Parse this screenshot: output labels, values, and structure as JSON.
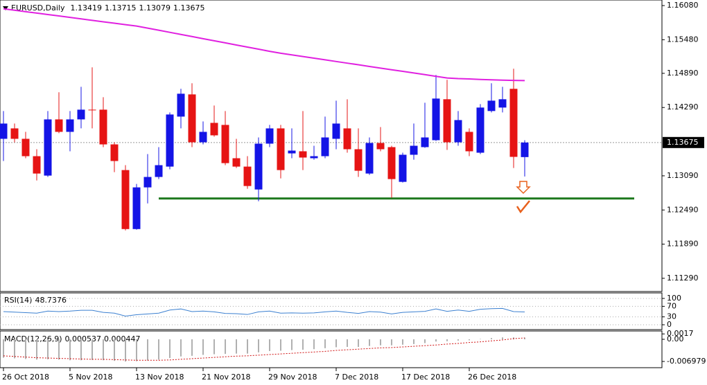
{
  "chart_data": [
    {
      "type": "candlestick",
      "title": "EURUSD,Daily",
      "categories": [
        "26 Oct 2018",
        null,
        null,
        null,
        null,
        null,
        "5 Nov 2018",
        null,
        null,
        null,
        null,
        null,
        "13 Nov 2018",
        null,
        null,
        null,
        null,
        null,
        "21 Nov 2018",
        null,
        null,
        null,
        null,
        null,
        "29 Nov 2018",
        null,
        null,
        null,
        null,
        null,
        "7 Dec 2018",
        null,
        null,
        null,
        null,
        null,
        "17 Dec 2018",
        null,
        null,
        null,
        null,
        null,
        "26 Dec 2018",
        null,
        null,
        null,
        null,
        null
      ],
      "open": [
        1.1374,
        1.13923,
        1.1374,
        1.13435,
        1.13094,
        1.14081,
        1.13862,
        1.14081,
        1.14252,
        1.14252,
        1.13642,
        1.13191,
        1.12155,
        1.12887,
        1.1307,
        1.13252,
        1.1413,
        1.1452,
        1.13679,
        1.1402,
        1.13984,
        1.13399,
        1.13252,
        1.1285,
        1.13655,
        1.13923,
        1.13484,
        1.13521,
        1.13399,
        1.13435,
        1.1374,
        1.13923,
        1.13557,
        1.1313,
        1.13667,
        1.13594,
        1.12984,
        1.1346,
        1.13594,
        1.13716,
        1.14435,
        1.13679,
        1.13862,
        1.13496,
        1.14228,
        1.14289,
        1.14618,
        1.13419
      ],
      "high": [
        1.14228,
        1.14008,
        1.13862,
        1.13557,
        1.14228,
        1.14557,
        1.14228,
        1.14654,
        1.14996,
        1.14471,
        1.13679,
        1.13277,
        1.12948,
        1.13472,
        1.13594,
        1.14203,
        1.14618,
        1.14715,
        1.14045,
        1.14325,
        1.14228,
        1.1374,
        1.13435,
        1.13764,
        1.13984,
        1.13984,
        1.13923,
        1.14228,
        1.13618,
        1.1413,
        1.1441,
        1.14435,
        1.13923,
        1.13764,
        1.13947,
        1.13618,
        1.13496,
        1.14008,
        1.14374,
        1.14861,
        1.14776,
        1.14228,
        1.13923,
        1.14349,
        1.14715,
        1.14654,
        1.14971,
        1.13715
      ],
      "low": [
        1.1335,
        1.13679,
        1.13399,
        1.13009,
        1.1307,
        1.13838,
        1.13521,
        1.13923,
        1.13923,
        1.13594,
        1.13155,
        1.12131,
        1.12143,
        1.12606,
        1.13033,
        1.13204,
        1.13923,
        1.13594,
        1.13642,
        1.13777,
        1.13277,
        1.13228,
        1.12862,
        1.12643,
        1.13594,
        1.13045,
        1.13399,
        1.13191,
        1.13374,
        1.13399,
        1.13557,
        1.13496,
        1.1307,
        1.13106,
        1.13521,
        1.12704,
        1.12972,
        1.13374,
        1.13582,
        1.13703,
        1.13545,
        1.13618,
        1.13435,
        1.13472,
        1.14203,
        1.14203,
        1.13228,
        1.13079
      ],
      "close": [
        1.14008,
        1.1374,
        1.13435,
        1.1313,
        1.14081,
        1.13862,
        1.14081,
        1.14252,
        1.1424,
        1.13642,
        1.1335,
        1.12155,
        1.12887,
        1.1307,
        1.13277,
        1.14167,
        1.14532,
        1.13679,
        1.13862,
        1.13801,
        1.13313,
        1.13252,
        1.12911,
        1.13655,
        1.13923,
        1.13191,
        1.13533,
        1.13411,
        1.13435,
        1.13764,
        1.14008,
        1.13557,
        1.13179,
        1.13667,
        1.13557,
        1.13033,
        1.1346,
        1.13618,
        1.13764,
        1.14447,
        1.13679,
        1.14069,
        1.13521,
        1.14289,
        1.1441,
        1.14435,
        1.13423,
        1.13675
      ],
      "up_color": "#1414e6",
      "down_color": "#e61414",
      "ma": {
        "color": "#e020e0",
        "values": [
          1.16023,
          1.15999,
          1.15973,
          1.15948,
          1.15922,
          1.15898,
          1.15872,
          1.15846,
          1.15821,
          1.15795,
          1.1577,
          1.15745,
          1.1572,
          1.15684,
          1.15648,
          1.1561,
          1.15573,
          1.15537,
          1.15499,
          1.15462,
          1.15425,
          1.15388,
          1.15351,
          1.15314,
          1.15277,
          1.15243,
          1.15214,
          1.15185,
          1.15156,
          1.15127,
          1.15098,
          1.15069,
          1.15041,
          1.15011,
          1.14982,
          1.14953,
          1.14925,
          1.14896,
          1.14867,
          1.14837,
          1.14809,
          1.14797,
          1.14791,
          1.14783,
          1.14777,
          1.14771,
          1.14766,
          1.14763
        ]
      },
      "support": {
        "color": "#1f7a1f",
        "value": 1.12692
      },
      "ylim": [
        1.11058,
        1.16178
      ],
      "yticks": [
        {
          "value": 1.1608,
          "label": "1.16080"
        },
        {
          "value": 1.1548,
          "label": "1.15480"
        },
        {
          "value": 1.1489,
          "label": "1.14890"
        },
        {
          "value": 1.1429,
          "label": "1.14290"
        },
        {
          "value": 1.1309,
          "label": "1.13090"
        },
        {
          "value": 1.1249,
          "label": "1.12490"
        },
        {
          "value": 1.1189,
          "label": "1.11890"
        },
        {
          "value": 1.1129,
          "label": "1.11290"
        }
      ]
    },
    {
      "type": "line",
      "title": "RSI(14)",
      "color": "#3a7fd0",
      "grid": true,
      "values": [
        50,
        48,
        46,
        44,
        52,
        50,
        52,
        55,
        55,
        47,
        44,
        33,
        38,
        41,
        44,
        56,
        60,
        50,
        52,
        49,
        43,
        42,
        39,
        49,
        52,
        44,
        45,
        44,
        45,
        49,
        52,
        47,
        43,
        50,
        48,
        41,
        47,
        49,
        51,
        60,
        51,
        56,
        51,
        59,
        61,
        62,
        50,
        48.7376
      ],
      "ylim": [
        -18.4,
        121
      ],
      "yticks": [
        100,
        70,
        30,
        0
      ]
    },
    {
      "type": "macd",
      "title": "MACD(12,26,9)",
      "color": "#b0b0b0",
      "values": [
        -0.0058,
        -0.006,
        -0.0062,
        -0.0064,
        -0.0063,
        -0.0064,
        -0.0066,
        -0.0066,
        -0.0065,
        -0.0066,
        -0.0068,
        -0.007,
        -0.0069,
        -0.0067,
        -0.0064,
        -0.0059,
        -0.0054,
        -0.0052,
        -0.0049,
        -0.0047,
        -0.0046,
        -0.0045,
        -0.0045,
        -0.0041,
        -0.0037,
        -0.0036,
        -0.0034,
        -0.0033,
        -0.0031,
        -0.0028,
        -0.0025,
        -0.0024,
        -0.0024,
        -0.0021,
        -0.0019,
        -0.0019,
        -0.0017,
        -0.0015,
        -0.0012,
        -0.0007,
        -0.0006,
        -0.0004,
        -0.0003,
        0.0001,
        0.0004,
        0.0006,
        0.0006,
        0.000537
      ],
      "signal": {
        "color": "#d01010",
        "values": [
          -0.0052,
          -0.0054,
          -0.0056,
          -0.0058,
          -0.0059,
          -0.006,
          -0.0061,
          -0.0062,
          -0.0063,
          -0.0063,
          -0.0064,
          -0.0065,
          -0.0066,
          -0.0066,
          -0.0066,
          -0.0065,
          -0.0063,
          -0.0061,
          -0.0059,
          -0.0057,
          -0.0055,
          -0.0053,
          -0.0052,
          -0.005,
          -0.0048,
          -0.0046,
          -0.0044,
          -0.0042,
          -0.004,
          -0.0038,
          -0.0035,
          -0.0033,
          -0.0031,
          -0.0029,
          -0.0027,
          -0.0026,
          -0.0024,
          -0.0022,
          -0.002,
          -0.0018,
          -0.0015,
          -0.0013,
          -0.001,
          -0.0008,
          -0.0005,
          -0.0002,
          0.0002,
          0.000447
        ]
      },
      "ylim": [
        -0.00894,
        0.00262
      ],
      "yticks": [
        0.0017,
        {
          "value": 0,
          "label": "0.00"
        },
        -0.006979
      ]
    }
  ]
}
